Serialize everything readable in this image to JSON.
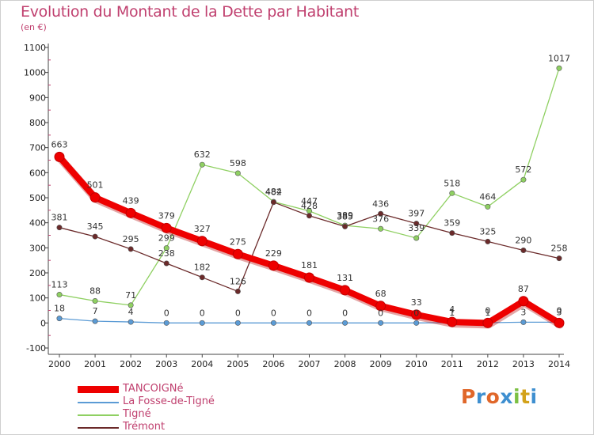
{
  "header": {
    "title": "Evolution du Montant de la Dette par Habitant",
    "unit": "(en €)"
  },
  "logo": {
    "text": "Proxiti",
    "colors": [
      "#e0672a",
      "#3e8fd0",
      "#e0672a",
      "#3e8fd0",
      "#7cc043",
      "#d3a21a",
      "#3e8fd0"
    ]
  },
  "chart_data": {
    "type": "line",
    "title": "Evolution du Montant de la Dette par Habitant",
    "xlabel": "",
    "ylabel": "(en €)",
    "x": [
      "2000",
      "2001",
      "2002",
      "2003",
      "2004",
      "2005",
      "2006",
      "2007",
      "2008",
      "2009",
      "2010",
      "2011",
      "2012",
      "2013",
      "2014"
    ],
    "ylim": [
      -100,
      1100
    ],
    "yticks": [
      -100,
      0,
      100,
      200,
      300,
      400,
      500,
      600,
      700,
      800,
      900,
      1000,
      1100
    ],
    "grid": false,
    "legend": "bottom-left",
    "series": [
      {
        "name": "TANCOIGNé",
        "color": "#ee0000",
        "values": [
          663,
          501,
          439,
          379,
          327,
          275,
          229,
          181,
          131,
          68,
          33,
          4,
          0,
          87,
          0
        ],
        "labels": [
          "663",
          "501",
          "439",
          "379",
          "327",
          "275",
          "229",
          "181",
          "131",
          "68",
          "33",
          "4",
          "0",
          "87",
          "0"
        ]
      },
      {
        "name": "La Fosse-de-Tigné",
        "color": "#5b9bd5",
        "values": [
          18,
          7,
          4,
          0,
          0,
          0,
          0,
          0,
          0,
          0,
          0,
          1,
          1,
          3,
          3
        ],
        "labels": [
          "18",
          "7",
          "4",
          "0",
          "0",
          "0",
          "0",
          "0",
          "0",
          "0",
          "0",
          "1",
          "1",
          "3",
          "3"
        ]
      },
      {
        "name": "Tigné",
        "color": "#8fd062",
        "values": [
          113,
          88,
          71,
          299,
          632,
          598,
          484,
          447,
          389,
          376,
          339,
          518,
          464,
          572,
          1017
        ],
        "labels": [
          "113",
          "88",
          "71",
          "299",
          "632",
          "598",
          "484",
          "447",
          "389",
          "376",
          "339",
          "518",
          "464",
          "572",
          "1017"
        ]
      },
      {
        "name": "Trémont",
        "color": "#6b2a2a",
        "values": [
          381,
          345,
          295,
          238,
          182,
          126,
          482,
          428,
          385,
          436,
          397,
          359,
          325,
          290,
          258
        ],
        "labels": [
          "381",
          "345",
          "295",
          "238",
          "182",
          "126",
          "482",
          "428",
          "385",
          "436",
          "397",
          "359",
          "325",
          "290",
          "258"
        ]
      }
    ]
  }
}
